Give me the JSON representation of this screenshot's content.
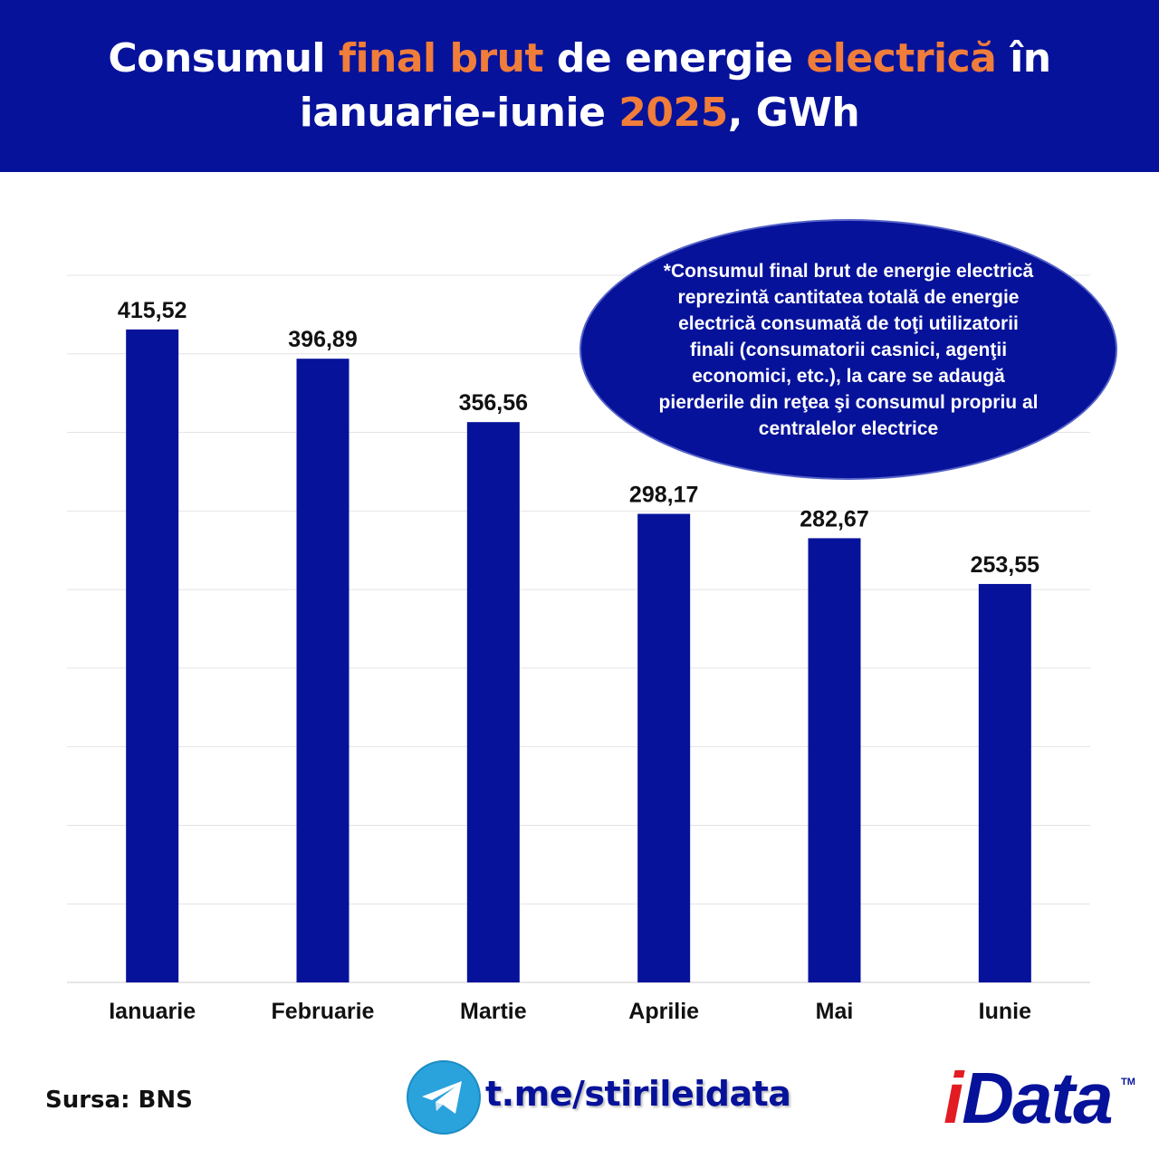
{
  "header": {
    "title_part1": "Consumul ",
    "title_hl1": "final brut",
    "title_part2": " de energie ",
    "title_hl2": "electrică",
    "title_part3": " în",
    "title_part4": "ianuarie-iunie ",
    "title_hl3": "2025",
    "title_part5": ", GWh"
  },
  "colors": {
    "primary": "#07129a",
    "accent": "#f07d3a",
    "bar": "#07129a"
  },
  "note": "*Consumul final brut de energie electrică reprezintă cantitatea totală de energie electrică consumată de toţi utilizatorii finali (consumatorii casnici, agenţii economici, etc.), la care se adaugă pierderile din reţea şi consumul propriu al centralelor electrice",
  "footer": {
    "source": "Sursa: BNS",
    "telegram_link": "t.me/stirileidata",
    "logo_text": "iData",
    "logo_tm": "TM"
  },
  "chart_data": {
    "type": "bar",
    "title": "Consumul final brut de energie electrică în ianuarie-iunie 2025, GWh",
    "categories": [
      "Ianuarie",
      "Februarie",
      "Martie",
      "Aprilie",
      "Mai",
      "Iunie"
    ],
    "values": [
      415.52,
      396.89,
      356.56,
      298.17,
      282.67,
      253.55
    ],
    "value_labels": [
      "415,52",
      "396,89",
      "356,56",
      "298,17",
      "282,67",
      "253,55"
    ],
    "ylim": [
      0,
      450
    ],
    "grid": true,
    "xlabel": "",
    "ylabel": ""
  }
}
